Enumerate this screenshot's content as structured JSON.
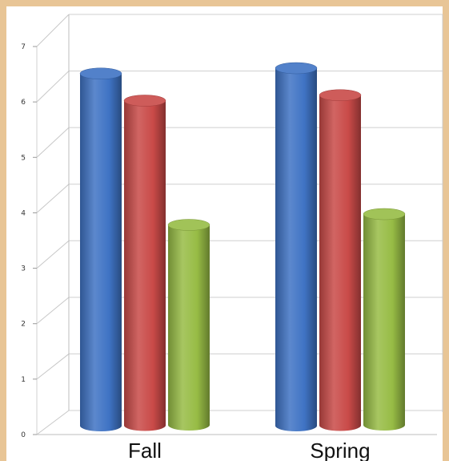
{
  "chart_data": {
    "type": "bar",
    "style": "3d-cylinder",
    "title": "",
    "xlabel": "",
    "ylabel": "",
    "categories": [
      "Fall",
      "Spring"
    ],
    "ylim": [
      0,
      7
    ],
    "yticks": [
      "0",
      "1",
      "2",
      "3",
      "4",
      "5",
      "6",
      "7"
    ],
    "grid": true,
    "legend": "none",
    "series": [
      {
        "color": "#3f73c4",
        "values": [
          6.5,
          6.6
        ]
      },
      {
        "color": "#c94a48",
        "values": [
          6.0,
          6.1
        ]
      },
      {
        "color": "#97bc45",
        "values": [
          3.7,
          3.9
        ]
      }
    ]
  }
}
